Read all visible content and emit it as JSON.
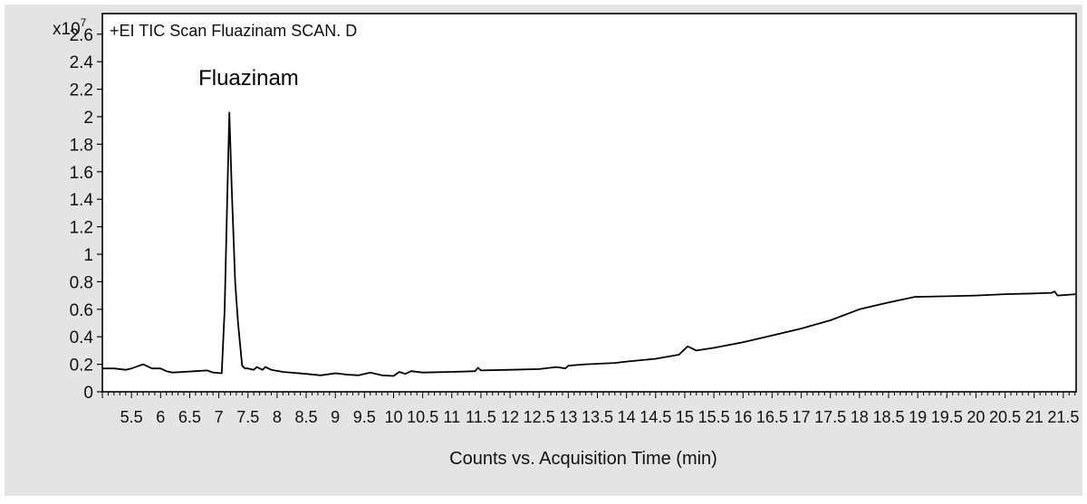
{
  "colors": {
    "page_background": "#ffffff",
    "frame_background": "#e4e4e4",
    "plot_background": "#ffffff",
    "trace": "#000000"
  },
  "chart_data": {
    "type": "line",
    "title": "+EI TIC Scan Fluazinam SCAN. D",
    "xlabel": "Counts vs. Acquisition Time (min)",
    "ylabel": "",
    "y_multiplier": "x10",
    "y_multiplier_exponent": "7",
    "xlim": [
      5.0,
      21.72
    ],
    "ylim": [
      0,
      2.75
    ],
    "x_ticks": [
      5.5,
      6,
      6.5,
      7,
      7.5,
      8,
      8.5,
      9,
      9.5,
      10,
      10.5,
      11,
      11.5,
      12,
      12.5,
      13,
      13.5,
      14,
      14.5,
      15,
      15.5,
      16,
      16.5,
      17,
      17.5,
      18,
      18.5,
      19,
      19.5,
      20,
      20.5,
      21,
      21.5
    ],
    "x_tick_labels": [
      "5.5",
      "6",
      "6.5",
      "7",
      "7.5",
      "8",
      "8.5",
      "9",
      "9.5",
      "10",
      "10.5",
      "11",
      "11.5",
      "12",
      "12.5",
      "13",
      "13.5",
      "14",
      "14.5",
      "15",
      "15.5",
      "16",
      "16.5",
      "17",
      "17.5",
      "18",
      "18.5",
      "19",
      "19.5",
      "20",
      "20.5",
      "21",
      "21.5"
    ],
    "y_ticks": [
      0,
      0.2,
      0.4,
      0.6,
      0.8,
      1,
      1.2,
      1.4,
      1.6,
      1.8,
      2,
      2.2,
      2.4,
      2.6
    ],
    "y_tick_labels": [
      "0",
      "0.2",
      "0.4",
      "0.6",
      "0.8",
      "1",
      "1.2",
      "1.4",
      "1.6",
      "1.8",
      "2",
      "2.2",
      "2.4",
      "2.6"
    ],
    "annotations": [
      {
        "text": "Fluazinam",
        "x": 6.65,
        "y": 2.23
      }
    ],
    "grid": false,
    "legend": "none",
    "series": [
      {
        "x": [
          5.0,
          5.2,
          5.4,
          5.5,
          5.7,
          5.85,
          6.0,
          6.1,
          6.2,
          6.4,
          6.6,
          6.8,
          6.9,
          7.05,
          7.1,
          7.15,
          7.18,
          7.22,
          7.28,
          7.33,
          7.4,
          7.45,
          7.5,
          7.6,
          7.65,
          7.75,
          7.8,
          7.9,
          8.1,
          8.5,
          8.75,
          9.0,
          9.2,
          9.4,
          9.6,
          9.8,
          10.0,
          10.1,
          10.2,
          10.3,
          10.5,
          11.0,
          11.4,
          11.45,
          11.5,
          12.0,
          12.5,
          12.8,
          12.95,
          13.0,
          13.3,
          13.8,
          14.0,
          14.5,
          14.9,
          15.05,
          15.2,
          15.5,
          16.0,
          16.5,
          17.0,
          17.5,
          18.0,
          18.5,
          18.95,
          19.5,
          20.0,
          20.5,
          21.0,
          21.3,
          21.35,
          21.4,
          21.72
        ],
        "y": [
          0.17,
          0.17,
          0.16,
          0.17,
          0.2,
          0.17,
          0.17,
          0.15,
          0.14,
          0.145,
          0.15,
          0.155,
          0.14,
          0.135,
          0.6,
          1.5,
          2.03,
          1.5,
          0.8,
          0.5,
          0.19,
          0.17,
          0.17,
          0.16,
          0.18,
          0.16,
          0.18,
          0.16,
          0.145,
          0.13,
          0.12,
          0.135,
          0.125,
          0.12,
          0.14,
          0.12,
          0.115,
          0.145,
          0.13,
          0.15,
          0.14,
          0.145,
          0.15,
          0.175,
          0.155,
          0.16,
          0.165,
          0.18,
          0.17,
          0.19,
          0.2,
          0.21,
          0.22,
          0.24,
          0.27,
          0.33,
          0.3,
          0.32,
          0.36,
          0.41,
          0.46,
          0.52,
          0.6,
          0.65,
          0.69,
          0.695,
          0.7,
          0.71,
          0.715,
          0.72,
          0.73,
          0.7,
          0.71
        ]
      }
    ]
  }
}
